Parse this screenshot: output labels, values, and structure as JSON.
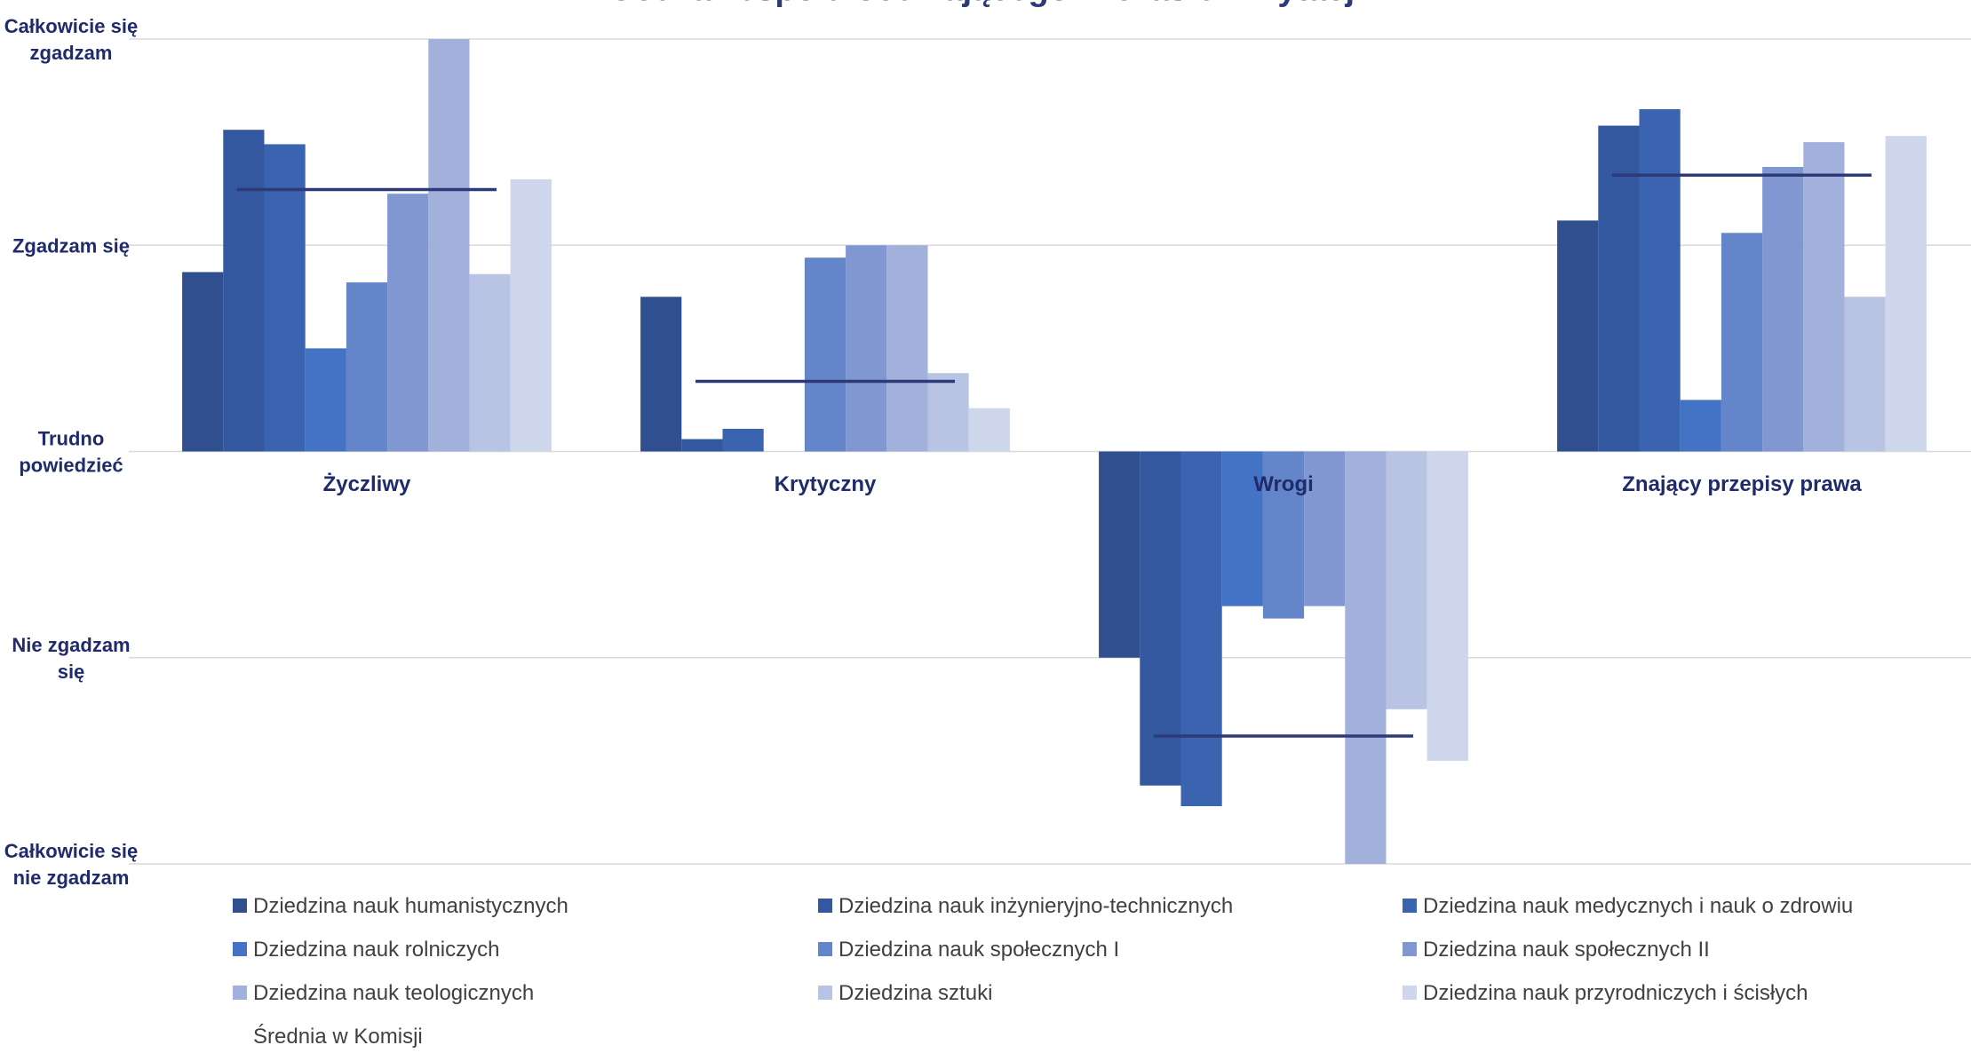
{
  "chart_data": {
    "type": "bar",
    "title": "Ocena zespołu oceniającego w czasie wizytacji",
    "categories": [
      "Życzliwy",
      "Krytyczny",
      "Wrogi",
      "Znający przepisy prawa"
    ],
    "y_ticks": [
      {
        "value": 2,
        "label": [
          "Całkowicie się",
          "zgadzam"
        ]
      },
      {
        "value": 1,
        "label": [
          "Zgadzam się"
        ]
      },
      {
        "value": 0,
        "label": [
          "Trudno",
          "powiedzieć"
        ]
      },
      {
        "value": -1,
        "label": [
          "Nie zgadzam",
          "się"
        ]
      },
      {
        "value": -2,
        "label": [
          "Całkowicie się",
          "nie zgadzam"
        ]
      }
    ],
    "ylim": [
      -2,
      2
    ],
    "grid": true,
    "legend_position": "bottom",
    "series": [
      {
        "name": "Dziedzina nauk humanistycznych",
        "color": "#2f4f8f",
        "values": [
          0.87,
          0.75,
          -1.0,
          1.12
        ]
      },
      {
        "name": "Dziedzina nauk inżynieryjno-technicznych",
        "color": "#34589f",
        "values": [
          1.56,
          0.06,
          -1.62,
          1.58
        ]
      },
      {
        "name": "Dziedzina nauk medycznych i nauk o zdrowiu",
        "color": "#3a63b0",
        "values": [
          1.49,
          0.11,
          -1.72,
          1.66
        ]
      },
      {
        "name": "Dziedzina nauk rolniczych",
        "color": "#4472c4",
        "values": [
          0.5,
          0.0,
          -0.75,
          0.25
        ]
      },
      {
        "name": "Dziedzina nauk społecznych  I",
        "color": "#6585cb",
        "values": [
          0.82,
          0.94,
          -0.81,
          1.06
        ]
      },
      {
        "name": "Dziedzina nauk społecznych II",
        "color": "#8197d2",
        "values": [
          1.25,
          1.0,
          -0.75,
          1.38
        ]
      },
      {
        "name": "Dziedzina nauk teologicznych",
        "color": "#a2b1dc",
        "values": [
          2.0,
          1.0,
          -2.0,
          1.5
        ]
      },
      {
        "name": "Dziedzina sztuki",
        "color": "#b9c4e4",
        "values": [
          0.86,
          0.38,
          -1.25,
          0.75
        ]
      },
      {
        "name": "Dziedzina nauk przyrodniczych i ścisłych",
        "color": "#ced6ec",
        "values": [
          1.32,
          0.21,
          -1.5,
          1.53
        ]
      }
    ],
    "average": {
      "name": "Średnia w Komisji",
      "color": "#2e3a78",
      "values": [
        1.27,
        0.34,
        -1.38,
        1.34
      ]
    },
    "colors": {
      "title": "#2e3a78",
      "axis_text": "#1f2b6b",
      "grid": "#d9d9d9",
      "legend_text": "#404040"
    }
  }
}
